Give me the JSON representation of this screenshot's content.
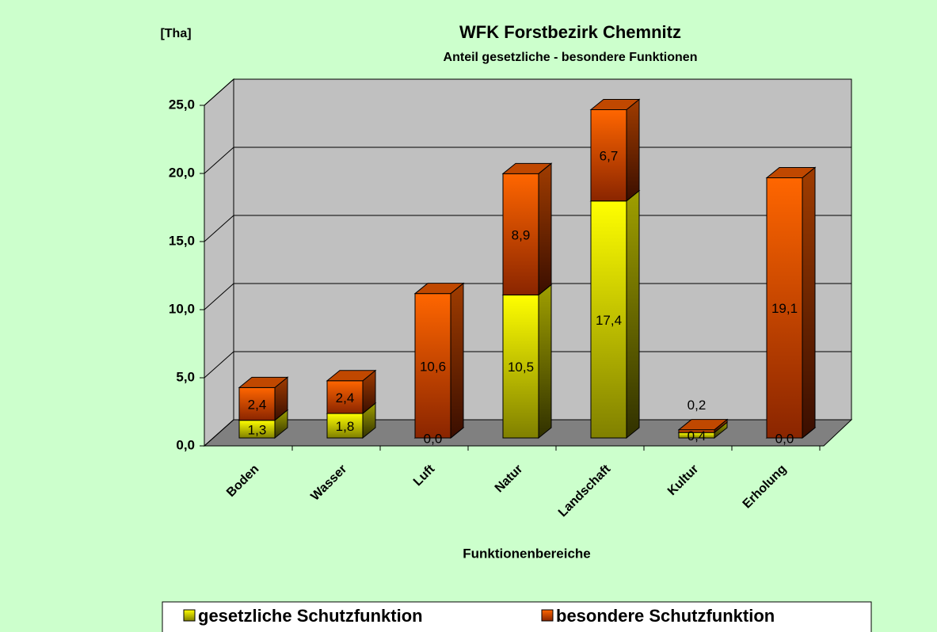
{
  "chart_data": {
    "type": "bar3d_stacked",
    "unit_label": "[Tha]",
    "title": "WFK Forstbezirk Chemnitz",
    "subtitle": "Anteil gesetzliche - besondere Funktionen",
    "x_label": "Funktionenbereiche",
    "categories": [
      "Boden",
      "Wasser",
      "Luft",
      "Natur",
      "Landschaft",
      "Kultur",
      "Erholung"
    ],
    "series": [
      {
        "name": "gesetzliche Schutzfunktion",
        "color": "#ffff00",
        "values": [
          1.3,
          1.8,
          0.0,
          10.5,
          17.4,
          0.4,
          0.0
        ],
        "value_labels": [
          "1,3",
          "1,8",
          "0,0",
          "10,5",
          "17,4",
          "0,4",
          "0,0"
        ]
      },
      {
        "name": "besondere Schutzfunktion",
        "color": "#ff6600",
        "values": [
          2.4,
          2.4,
          10.6,
          8.9,
          6.7,
          0.2,
          19.1
        ],
        "value_labels": [
          "2,4",
          "2,4",
          "10,6",
          "8,9",
          "6,7",
          "0,2",
          "19,1"
        ]
      }
    ],
    "ylim": [
      0,
      25
    ],
    "yticks": [
      {
        "value": 0,
        "label": "0,0"
      },
      {
        "value": 5,
        "label": "5,0"
      },
      {
        "value": 10,
        "label": "10,0"
      },
      {
        "value": 15,
        "label": "15,0"
      },
      {
        "value": 20,
        "label": "20,0"
      },
      {
        "value": 25,
        "label": "25,0"
      }
    ],
    "grid": true,
    "legend": "bottom"
  }
}
